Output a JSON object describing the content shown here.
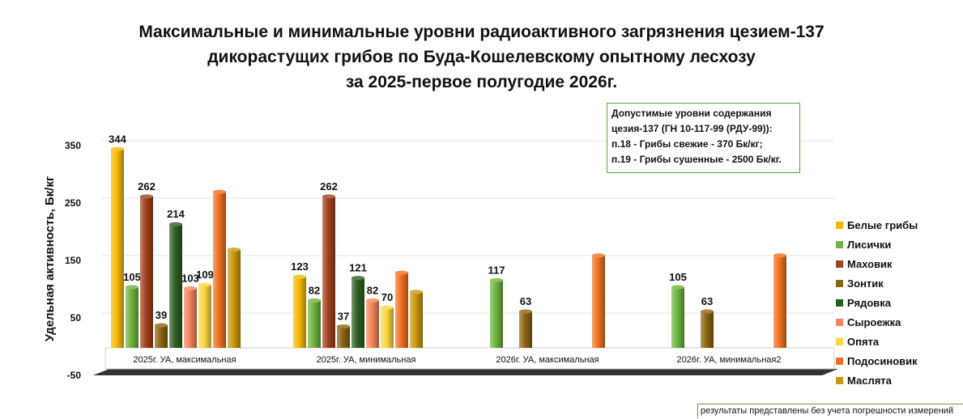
{
  "title_lines": [
    "Максимальные и минимальные уровни радиоактивного загрязнения цезием-137",
    "дикорастущих грибов по Буда-Кошелевскому опытному лесхозу",
    "за 2025-первое полугодие 2026г."
  ],
  "norms_box": {
    "line1": "Допустимые уровни содержания цезия-137 (ГН 10-117-99 (РДУ-99)):",
    "line2": "п.18 - Грибы свежие - 370 Бк/кг;",
    "line3": "п.19 - Грибы сушенные - 2500 Бк/кг."
  },
  "footnote": "результаты представлены без учета погрешности измерений",
  "chart_data": {
    "type": "bar",
    "ylabel": "Удельная активность, Бк/кг",
    "ylim": [
      -50,
      350
    ],
    "yticks": [
      -50,
      50,
      150,
      250,
      350
    ],
    "categories": [
      "2025г. УА, максимальная",
      "2025г. УА, минимальная",
      "2026г. УА,  максимальная",
      "2026г. УА, минимальная2"
    ],
    "series": [
      {
        "name": "Белые грибы",
        "color": "#f5b800",
        "values": [
          344,
          123,
          null,
          null
        ],
        "labels": [
          true,
          true,
          false,
          false
        ]
      },
      {
        "name": "Лисички",
        "color": "#6db33f",
        "values": [
          105,
          82,
          117,
          105
        ],
        "labels": [
          true,
          true,
          true,
          true
        ]
      },
      {
        "name": "Маховик",
        "color": "#a0401c",
        "values": [
          262,
          262,
          null,
          null
        ],
        "labels": [
          true,
          true,
          false,
          false
        ]
      },
      {
        "name": "Зонтик",
        "color": "#8a6410",
        "values": [
          39,
          37,
          63,
          63
        ],
        "labels": [
          true,
          true,
          true,
          true
        ]
      },
      {
        "name": "Рядовка",
        "color": "#2f5e22",
        "values": [
          214,
          121,
          null,
          null
        ],
        "labels": [
          true,
          true,
          false,
          false
        ]
      },
      {
        "name": "Сыроежка",
        "color": "#f4845a",
        "values": [
          103,
          82,
          null,
          null
        ],
        "labels": [
          true,
          true,
          false,
          false
        ]
      },
      {
        "name": "Опята",
        "color": "#fbd640",
        "values": [
          109,
          70,
          null,
          null
        ],
        "labels": [
          true,
          true,
          false,
          false
        ]
      },
      {
        "name": "Подосиновик",
        "color": "#f07020",
        "values": [
          270,
          130,
          160,
          160
        ],
        "labels": [
          false,
          false,
          false,
          false
        ]
      },
      {
        "name": "Маслята",
        "color": "#c9980e",
        "values": [
          170,
          97,
          null,
          null
        ],
        "labels": [
          false,
          false,
          false,
          false
        ]
      }
    ],
    "grid": true,
    "legend_position": "right"
  }
}
